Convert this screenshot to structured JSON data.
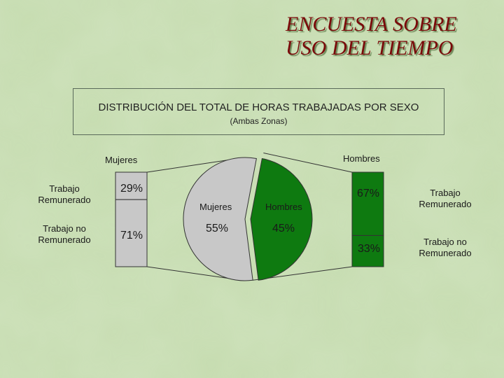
{
  "title_lines": [
    "ENCUESTA SOBRE",
    "USO DEL TIEMPO"
  ],
  "chart_data": {
    "type": "pie",
    "title": "DISTRIBUCIÓN DEL TOTAL DE HORAS TRABAJADAS POR SEXO",
    "subtitle": "(Ambas Zonas)",
    "pie": {
      "slices": [
        {
          "name": "Mujeres",
          "value": 55,
          "label": "55%",
          "color": "#c8c8c8"
        },
        {
          "name": "Hombres",
          "value": 45,
          "label": "45%",
          "color": "#0e7a10"
        }
      ]
    },
    "breakdown_women": {
      "title": "Mujeres",
      "categories": [
        "Trabajo Remunerado",
        "Trabajo no Remunerado"
      ],
      "values": [
        29,
        71
      ],
      "labels": [
        "29%",
        "71%"
      ],
      "color": "#c8c8c8"
    },
    "breakdown_men": {
      "title": "Hombres",
      "categories": [
        "Trabajo Remunerado",
        "Trabajo no Remunerado"
      ],
      "values": [
        67,
        33
      ],
      "labels": [
        "67%",
        "33%"
      ],
      "color": "#0e7a10"
    },
    "left_category_labels": [
      [
        "Trabajo",
        "Remunerado"
      ],
      [
        "Trabajo no",
        "Remunerado"
      ]
    ],
    "right_category_labels": [
      [
        "Trabajo",
        "Remunerado"
      ],
      [
        "Trabajo no",
        "Remunerado"
      ]
    ]
  }
}
